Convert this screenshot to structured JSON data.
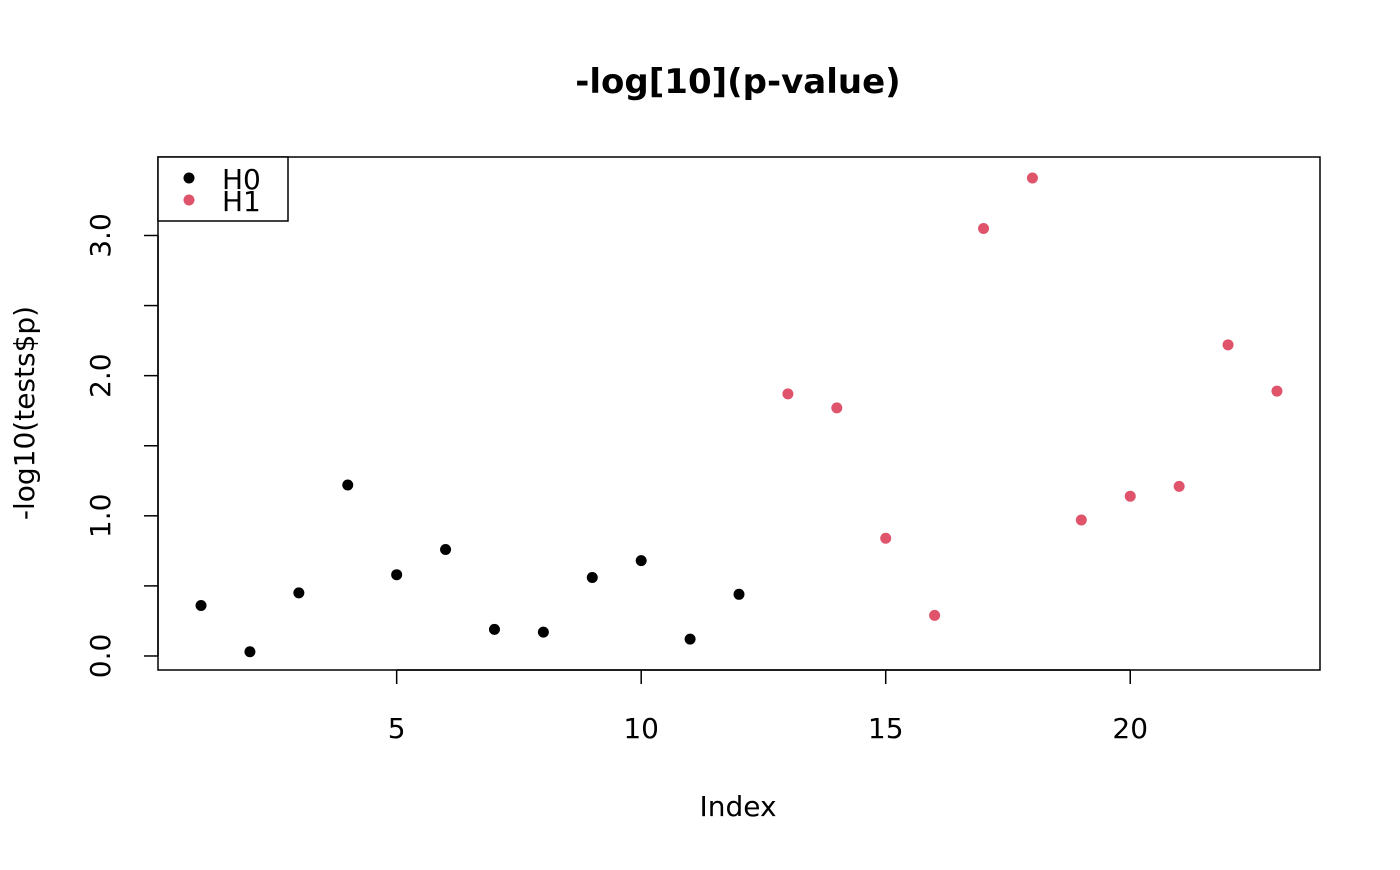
{
  "chart_data": {
    "type": "scatter",
    "title": "-log[10](p-value)",
    "xlabel": "Index",
    "ylabel": "-log10(tests$p)",
    "xlim": [
      0.12,
      23.88
    ],
    "ylim": [
      -0.1,
      3.56
    ],
    "x_ticks": [
      5,
      10,
      15,
      20
    ],
    "x_tick_labels": [
      "5",
      "10",
      "15",
      "20"
    ],
    "y_ticks": [
      0,
      0.5,
      1,
      1.5,
      2,
      2.5,
      3
    ],
    "y_tick_labels": [
      "0.0",
      "",
      "1.0",
      "",
      "2.0",
      "",
      "3.0"
    ],
    "grid": false,
    "legend": {
      "position": "top-left",
      "entries": [
        {
          "label": "H0",
          "color": "#000000"
        },
        {
          "label": "H1",
          "color": "#DF536B"
        }
      ]
    },
    "series": [
      {
        "name": "H0",
        "color": "#000000",
        "x": [
          1,
          2,
          3,
          4,
          5,
          6,
          7,
          8,
          9,
          10,
          11,
          12
        ],
        "y": [
          0.36,
          0.03,
          0.45,
          1.22,
          0.58,
          0.76,
          0.19,
          0.17,
          0.56,
          0.68,
          0.12,
          0.44
        ]
      },
      {
        "name": "H1",
        "color": "#DF536B",
        "x": [
          13,
          14,
          15,
          16,
          17,
          18,
          19,
          20,
          21,
          22,
          23
        ],
        "y": [
          1.87,
          1.77,
          0.84,
          0.29,
          3.05,
          3.41,
          0.97,
          1.14,
          1.21,
          2.22,
          1.89
        ]
      }
    ]
  }
}
